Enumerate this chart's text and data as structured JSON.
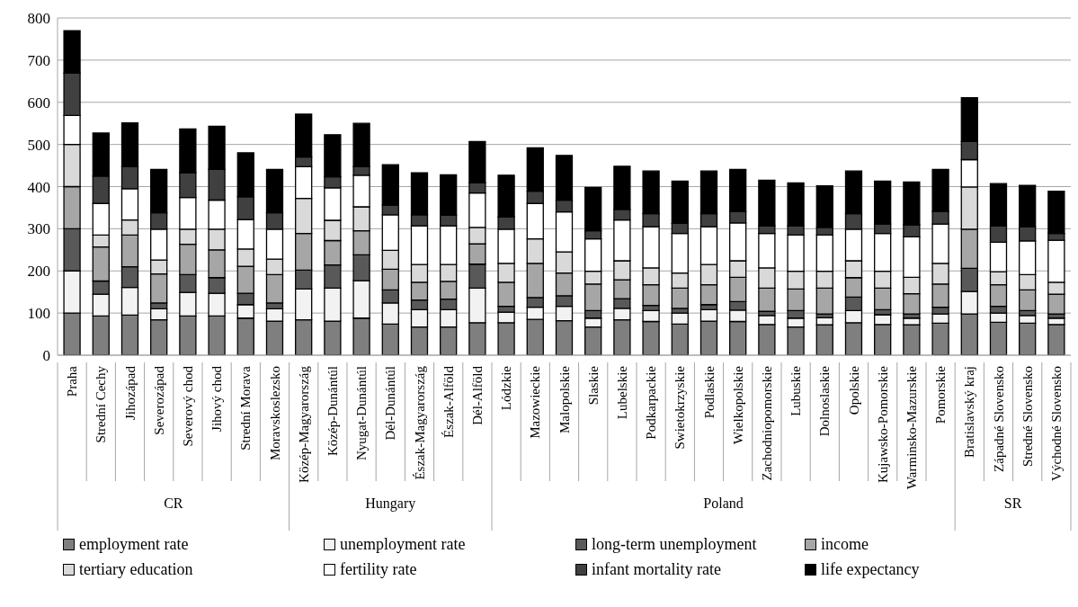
{
  "chart_data": {
    "type": "bar",
    "stacked": true,
    "categories": [
      "Praha",
      "Strední Cechy",
      "Jihozápad",
      "Severozápad",
      "Severový chod",
      "Jihový chod",
      "Strední Morava",
      "Moravskoslezsko",
      "Közép-Magyarország",
      "Közép-Dunántúl",
      "Nyugat-Dunántúl",
      "Dél-Dunántúl",
      "Észak-Magyarország",
      "Észak-Alföld",
      "Dél-Alföld",
      "Lódzkie",
      "Mazowieckie",
      "Malopolskie",
      "Slaskie",
      "Lubelskie",
      "Podkarpackie",
      "Swietokrzyskie",
      "Podlaskie",
      "Wielkopolskie",
      "Zachodniopomorskie",
      "Lubuskie",
      "Dolnoslaskie",
      "Opolskie",
      "Kujawsko-Pomorskie",
      "Warminsko-Mazurskie",
      "Pomorskie",
      "Bratislavský kraj",
      "Západné Slovensko",
      "Stredné Slovensko",
      "Východné Slovensko"
    ],
    "series": [
      {
        "name": "employment rate",
        "color": "#7f7f7f",
        "values": [
          100,
          93,
          95,
          84,
          93,
          93,
          88,
          81,
          84,
          81,
          88,
          74,
          67,
          67,
          77,
          77,
          85,
          82,
          67,
          84,
          80,
          74,
          81,
          80,
          73,
          67,
          72,
          77,
          73,
          72,
          76,
          98,
          78,
          76,
          73
        ]
      },
      {
        "name": "unemployment rate",
        "color": "#f2f2f2",
        "values": [
          100,
          52,
          66,
          26,
          56,
          54,
          32,
          29,
          73,
          78,
          89,
          50,
          41,
          41,
          82,
          25,
          29,
          34,
          21,
          27,
          26,
          26,
          27,
          27,
          21,
          21,
          17,
          29,
          23,
          16,
          22,
          53,
          22,
          18,
          15
        ]
      },
      {
        "name": "long-term unemployment",
        "color": "#595959",
        "values": [
          100,
          31,
          49,
          14,
          42,
          37,
          27,
          14,
          45,
          55,
          61,
          31,
          23,
          25,
          57,
          14,
          23,
          25,
          18,
          23,
          12,
          11,
          12,
          20,
          10,
          18,
          9,
          32,
          12,
          10,
          16,
          55,
          16,
          12,
          10
        ]
      },
      {
        "name": "income",
        "color": "#a6a6a6",
        "values": [
          100,
          81,
          75,
          69,
          72,
          66,
          64,
          67,
          87,
          58,
          57,
          49,
          42,
          42,
          48,
          57,
          81,
          54,
          63,
          45,
          49,
          48,
          47,
          58,
          55,
          51,
          61,
          46,
          51,
          48,
          55,
          93,
          51,
          49,
          47
        ]
      },
      {
        "name": "tertiary education",
        "color": "#d9d9d9",
        "values": [
          100,
          28,
          36,
          33,
          36,
          49,
          41,
          37,
          83,
          48,
          57,
          45,
          42,
          40,
          39,
          45,
          58,
          50,
          30,
          45,
          40,
          36,
          48,
          39,
          48,
          42,
          40,
          40,
          40,
          39,
          49,
          100,
          31,
          36,
          28
        ]
      },
      {
        "name": "fertility rate",
        "color": "#ffffff",
        "values": [
          69,
          75,
          74,
          73,
          75,
          69,
          70,
          71,
          75,
          77,
          75,
          84,
          92,
          92,
          82,
          81,
          84,
          95,
          77,
          97,
          98,
          94,
          90,
          90,
          82,
          86,
          86,
          75,
          90,
          96,
          93,
          65,
          70,
          80,
          100
        ]
      },
      {
        "name": "infant mortality rate",
        "color": "#404040",
        "values": [
          100,
          65,
          52,
          39,
          59,
          73,
          54,
          39,
          23,
          26,
          20,
          23,
          26,
          25,
          24,
          29,
          29,
          28,
          19,
          25,
          31,
          24,
          31,
          27,
          18,
          22,
          18,
          37,
          22,
          28,
          30,
          43,
          39,
          34,
          16
        ]
      },
      {
        "name": "life expectancy",
        "color": "#000000",
        "values": [
          101,
          102,
          104,
          103,
          104,
          102,
          104,
          103,
          102,
          100,
          103,
          96,
          100,
          96,
          98,
          99,
          103,
          106,
          103,
          102,
          101,
          100,
          101,
          100,
          108,
          102,
          99,
          101,
          102,
          102,
          100,
          104,
          100,
          98,
          100
        ]
      }
    ],
    "ylim": [
      0,
      800
    ],
    "yticks": [
      0,
      100,
      200,
      300,
      400,
      500,
      600,
      700,
      800
    ],
    "grid": "y",
    "legend": "bottom",
    "annotations": [
      "CR",
      "Hungary",
      "Poland",
      "SR"
    ]
  }
}
